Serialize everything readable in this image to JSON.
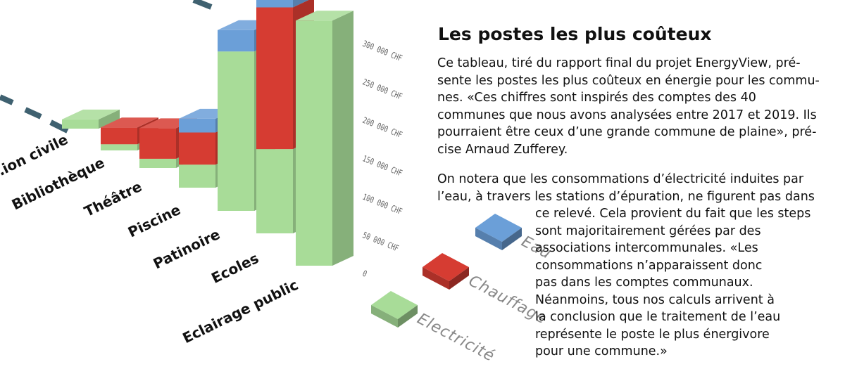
{
  "article": {
    "title": "Les postes les plus coûteux",
    "para1_lines": [
      "Ce tableau, tiré du rapport final du projet EnergyView, pré-",
      "sente les postes les plus coûteux en énergie pour les commu-",
      "nes. «Ces chiffres sont inspirés des comptes des 40",
      "communes que nous avons analysées entre 2017 et 2019. Ils",
      "pourraient être ceux d’une grande commune de plaine», pré-",
      "cise Arnaud Zufferey."
    ],
    "para2_lines_top": [
      "On notera que les consommations d’électricité induites par",
      "l’eau, à travers les stations d’épuration, ne figurent pas dans"
    ],
    "para2_lines_bottom": [
      "ce relevé. Cela provient du fait que les steps",
      "sont majoritairement gérées par des",
      "associations intercommunales. «Les",
      "consommations n’apparaissent donc",
      "pas dans les comptes communaux.",
      "Néanmoins, tous nos calculs arrivent à",
      "la conclusion que le traitement de l’eau",
      "représente le poste le plus énergivore",
      "pour une commune.»"
    ]
  },
  "chart_data": {
    "type": "bar",
    "stacked": true,
    "three_d": true,
    "categories": [
      "…ion civile",
      "Bibliothèque",
      "Théâtre",
      "Piscine",
      "Patinoire",
      "Ecoles",
      "Eclairage public"
    ],
    "series": [
      {
        "name": "Electricité",
        "color": "#a8dc98",
        "values": [
          12000,
          8000,
          12000,
          30000,
          208000,
          110000,
          320000
        ]
      },
      {
        "name": "Chauffage",
        "color": "#d63c32",
        "values": [
          0,
          22000,
          40000,
          42000,
          0,
          185000,
          0
        ]
      },
      {
        "name": "Eau",
        "color": "#6b9fd8",
        "values": [
          0,
          0,
          0,
          18000,
          28000,
          25000,
          0
        ]
      }
    ],
    "y_ticks": [
      0,
      50000,
      100000,
      150000,
      200000,
      250000,
      300000
    ],
    "y_tick_labels": [
      "0",
      "50 000 CHF",
      "100 000 CHF",
      "150 000 CHF",
      "200 000 CHF",
      "250 000 CHF",
      "300 000 CHF"
    ],
    "ylim": [
      0,
      300000
    ],
    "legend": [
      "Eau",
      "Chauffage",
      "Electricité"
    ],
    "grid": true,
    "decor_color": "#3f6170"
  }
}
